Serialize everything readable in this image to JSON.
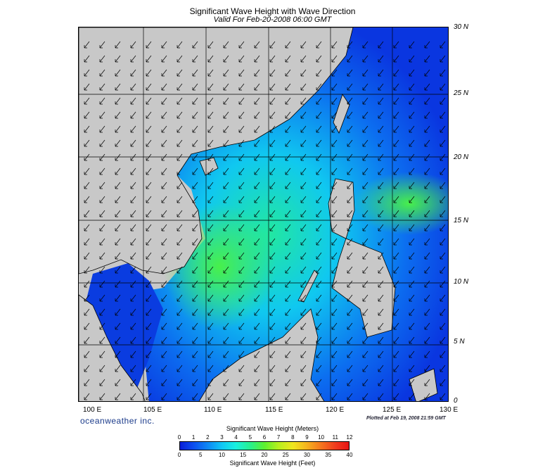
{
  "header": {
    "title": "Significant Wave Height with Wave Direction",
    "subtitle": "Valid For Feb-20-2008 06:00 GMT"
  },
  "map": {
    "lat_labels": [
      "30 N",
      "25 N",
      "20 N",
      "15 N",
      "10 N",
      "5 N",
      "0"
    ],
    "lon_labels": [
      "100 E",
      "105 E",
      "110 E",
      "115 E",
      "120 E",
      "125 E",
      "130 E"
    ],
    "land_color": "#c8c8c8",
    "wave_arrow_direction": "southwest",
    "colors": {
      "low": "#0a1ed8",
      "mid_low": "#0e8cf5",
      "mid": "#18f0e0",
      "high": "#5cf030"
    }
  },
  "footer": {
    "brand": "oceanweather inc.",
    "plotted": "Plotted at Feb 19, 2008 21:59 GMT"
  },
  "legend": {
    "meters_title": "Significant Wave Height (Meters)",
    "feet_title": "Significant Wave Height (Feet)",
    "meters_ticks": [
      "0",
      "1",
      "2",
      "3",
      "4",
      "5",
      "6",
      "7",
      "8",
      "9",
      "10",
      "11",
      "12"
    ],
    "feet_ticks": [
      "0",
      "5",
      "10",
      "15",
      "20",
      "25",
      "30",
      "35",
      "40"
    ]
  }
}
